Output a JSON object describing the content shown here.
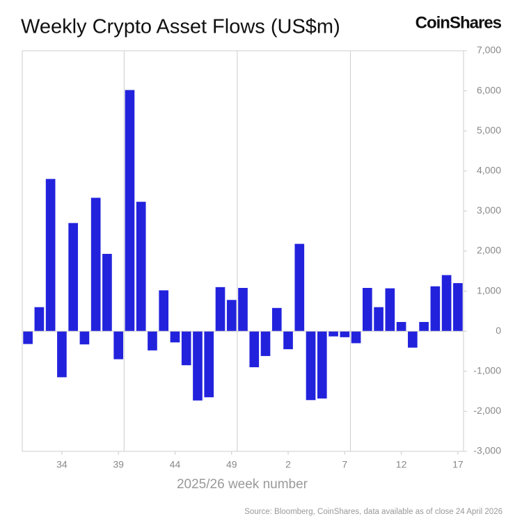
{
  "chart_data": {
    "type": "bar",
    "title": "Weekly Crypto Asset Flows (US$m)",
    "brand": "CoinShares",
    "x_label": "2025/26 week number",
    "source": "Source: Bloomberg, CoinShares, data available as of close 24 April 2026",
    "categories": [
      null,
      null,
      null,
      "34",
      null,
      null,
      null,
      null,
      "39",
      null,
      null,
      null,
      null,
      "44",
      null,
      null,
      null,
      null,
      "49",
      null,
      null,
      null,
      null,
      "2",
      null,
      null,
      null,
      null,
      "7",
      null,
      null,
      null,
      null,
      "12",
      null,
      null,
      null,
      null,
      "17"
    ],
    "values": [
      -320,
      600,
      3800,
      -1150,
      2700,
      -330,
      3330,
      1930,
      -700,
      6020,
      3230,
      -480,
      1020,
      -280,
      -850,
      -1730,
      -1650,
      1100,
      780,
      1080,
      -900,
      -620,
      580,
      -450,
      2180,
      -1720,
      -1680,
      -130,
      -150,
      -300,
      1080,
      600,
      1070,
      230,
      -410,
      230,
      1120,
      1400,
      1200
    ],
    "color": "#2222dd",
    "ylim": [
      -3000,
      7000
    ],
    "yticks": [
      {
        "value": -3000,
        "label": "-3,000"
      },
      {
        "value": -2000,
        "label": "-2,000"
      },
      {
        "value": -1000,
        "label": "-1,000"
      },
      0,
      {
        "value": 1000,
        "label": "1,000"
      },
      {
        "value": 2000,
        "label": "2,000"
      },
      {
        "value": 3000,
        "label": "3,000"
      },
      {
        "value": 4000,
        "label": "4,000"
      },
      {
        "value": 5000,
        "label": "5,000"
      },
      {
        "value": 6000,
        "label": "6,000"
      },
      {
        "value": 7000,
        "label": "7,000"
      }
    ]
  }
}
